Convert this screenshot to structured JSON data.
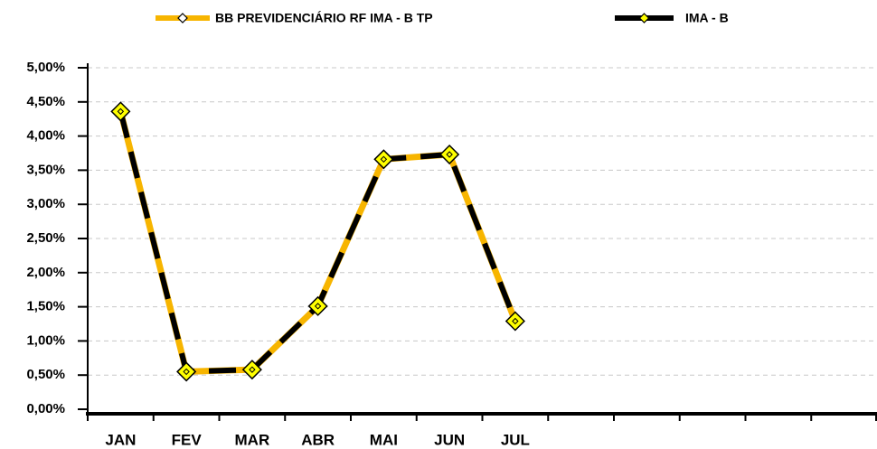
{
  "chart_data": {
    "type": "line",
    "categories": [
      "JAN",
      "FEV",
      "MAR",
      "ABR",
      "MAI",
      "JUN",
      "JUL",
      null,
      null,
      null,
      null,
      null
    ],
    "series": [
      {
        "name": "BB PREVIDENCIÁRIO RF IMA - B TP",
        "color": "#f7b500",
        "values": [
          4.36,
          0.55,
          0.58,
          1.51,
          3.66,
          3.73,
          1.29,
          null,
          null,
          null,
          null,
          null
        ]
      },
      {
        "name": "IMA - B",
        "color": "#000000",
        "values": [
          4.36,
          0.55,
          0.58,
          1.51,
          3.66,
          3.73,
          1.29,
          null,
          null,
          null,
          null,
          null
        ]
      }
    ],
    "ylim": [
      0,
      5
    ],
    "yticks": [
      {
        "value": 0,
        "label": "0,00%"
      },
      {
        "value": 0.5,
        "label": "0,50%"
      },
      {
        "value": 1,
        "label": "1,00%"
      },
      {
        "value": 1.5,
        "label": "1,50%"
      },
      {
        "value": 2,
        "label": "2,00%"
      },
      {
        "value": 2.5,
        "label": "2,50%"
      },
      {
        "value": 3,
        "label": "3,00%"
      },
      {
        "value": 3.5,
        "label": "3,50%"
      },
      {
        "value": 4,
        "label": "4,00%"
      },
      {
        "value": 4.5,
        "label": "4,50%"
      },
      {
        "value": 5,
        "label": "5,00%"
      }
    ],
    "grid": true,
    "legend": "top"
  }
}
